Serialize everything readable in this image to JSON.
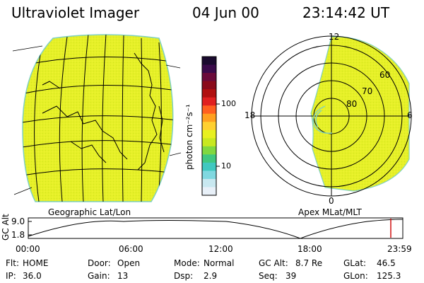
{
  "header": {
    "instrument": "Ultraviolet Imager",
    "date": "04 Jun 00",
    "time": "23:14:42 UT"
  },
  "colorbar": {
    "unit_label": "photon cm⁻²s⁻¹",
    "ticks": [
      "100",
      "10"
    ],
    "colors": [
      "#1a0a2e",
      "#3a0a4a",
      "#6a0a3a",
      "#8a0a1a",
      "#b01010",
      "#e02020",
      "#ff6020",
      "#ffa020",
      "#ffd030",
      "#e8f020",
      "#c8e820",
      "#80d840",
      "#40c880",
      "#40c8c0",
      "#80d8e0",
      "#c8e8f0",
      "#e8f0f8"
    ]
  },
  "left_map": {
    "caption": "Geographic Lat/Lon",
    "fill_color": "#e6f028"
  },
  "right_map": {
    "caption": "Apex MLat/MLT",
    "mlt_labels": {
      "top": "12",
      "bottom": "0",
      "left": "18",
      "right": "6"
    },
    "lat_labels": [
      "60",
      "70",
      "80"
    ],
    "fill_color": "#e6f028"
  },
  "timeline": {
    "y_axis_label": "GC Alt",
    "y_ticks": [
      "9.0",
      "1.8"
    ],
    "x_ticks": [
      "00:00",
      "06:00",
      "12:00",
      "18:00",
      "23:59"
    ],
    "cursor_color": "#d01010"
  },
  "footer": {
    "row1": [
      {
        "label": "Flt:",
        "value": "HOME"
      },
      {
        "label": "Door:",
        "value": "Open"
      },
      {
        "label": "Mode:",
        "value": "Normal"
      },
      {
        "label": "GC Alt:",
        "value": "8.7 Re"
      },
      {
        "label": "GLat:",
        "value": "46.5"
      }
    ],
    "row2": [
      {
        "label": "IP:",
        "value": "36.0"
      },
      {
        "label": "Gain:",
        "value": "13"
      },
      {
        "label": "Dsp:",
        "value": "2.9"
      },
      {
        "label": "Seq:",
        "value": "39"
      },
      {
        "label": "GLon:",
        "value": "125.3"
      }
    ]
  }
}
